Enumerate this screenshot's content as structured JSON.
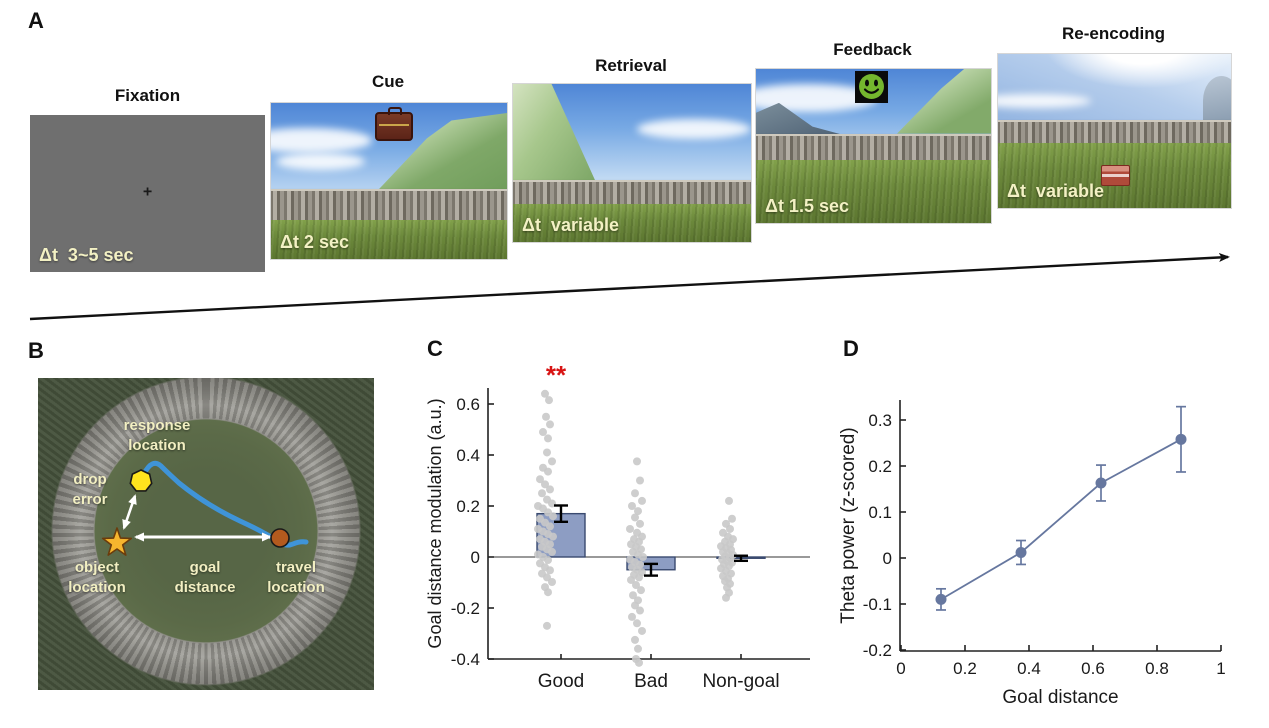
{
  "figure_labels": {
    "a": "A",
    "b": "B",
    "c": "C",
    "d": "D"
  },
  "panel_a": {
    "stages": [
      {
        "title": "Fixation",
        "duration": "Δt  3~5 sec"
      },
      {
        "title": "Cue",
        "duration": "Δt 2 sec"
      },
      {
        "title": "Retrieval",
        "duration": "Δt  variable"
      },
      {
        "title": "Feedback",
        "duration": "Δt 1.5 sec"
      },
      {
        "title": "Re-encoding",
        "duration": "Δt  variable"
      }
    ],
    "fixation_cross": "+"
  },
  "panel_b": {
    "labels": {
      "response_location": [
        "response",
        "location"
      ],
      "drop_error": [
        "drop",
        "error"
      ],
      "object_location": [
        "object",
        "location"
      ],
      "goal_distance": [
        "goal",
        "distance"
      ],
      "travel_location": [
        "travel",
        "location"
      ]
    },
    "colors": {
      "path": "#3f94d8",
      "response_marker": "#ffe41e",
      "object_marker": "#f6b52e",
      "travel_marker": "#b35a1e",
      "label_text": "#f2efc2"
    }
  },
  "chart_data": [
    {
      "id": "C",
      "type": "bar",
      "categories": [
        "Good",
        "Bad",
        "Non-goal"
      ],
      "bar_values": [
        0.17,
        -0.05,
        -0.005
      ],
      "bar_errors": [
        0.032,
        0.023,
        0.01
      ],
      "significance": {
        "category": "Good",
        "marker": "**",
        "color": "#d81414"
      },
      "ylabel": "Goal distance modulation (a.u.)",
      "yticks": [
        -0.4,
        -0.2,
        0,
        0.2,
        0.4,
        0.6
      ],
      "ylim": [
        -0.42,
        0.7
      ],
      "grid": false,
      "bar_color": "#8d9dc3",
      "bar_edge": "#3a4a6f",
      "point_color": "#c9c9c9",
      "points": {
        "Good": [
          [
            -16,
            0.64
          ],
          [
            -12,
            0.615
          ],
          [
            -15,
            0.55
          ],
          [
            -11,
            0.52
          ],
          [
            -18,
            0.49
          ],
          [
            -13,
            0.465
          ],
          [
            -14,
            0.41
          ],
          [
            -9,
            0.375
          ],
          [
            -18,
            0.35
          ],
          [
            -13,
            0.335
          ],
          [
            -21,
            0.305
          ],
          [
            -16,
            0.285
          ],
          [
            -11,
            0.265
          ],
          [
            -19,
            0.25
          ],
          [
            -14,
            0.225
          ],
          [
            -9,
            0.21
          ],
          [
            -23,
            0.2
          ],
          [
            -18,
            0.19
          ],
          [
            -13,
            0.175
          ],
          [
            -8,
            0.16
          ],
          [
            -21,
            0.15
          ],
          [
            -16,
            0.135
          ],
          [
            -11,
            0.12
          ],
          [
            -23,
            0.11
          ],
          [
            -18,
            0.1
          ],
          [
            -13,
            0.09
          ],
          [
            -8,
            0.08
          ],
          [
            -21,
            0.07
          ],
          [
            -16,
            0.06
          ],
          [
            -11,
            0.05
          ],
          [
            -19,
            0.04
          ],
          [
            -14,
            0.03
          ],
          [
            -9,
            0.02
          ],
          [
            -23,
            0.01
          ],
          [
            -18,
            0.0
          ],
          [
            -13,
            -0.012
          ],
          [
            -21,
            -0.025
          ],
          [
            -16,
            -0.04
          ],
          [
            -11,
            -0.052
          ],
          [
            -19,
            -0.065
          ],
          [
            -14,
            -0.08
          ],
          [
            -9,
            -0.098
          ],
          [
            -16,
            -0.118
          ],
          [
            -13,
            -0.138
          ],
          [
            -14,
            -0.27
          ]
        ],
        "Bad": [
          [
            -14,
            0.375
          ],
          [
            -11,
            0.3
          ],
          [
            -16,
            0.25
          ],
          [
            -9,
            0.22
          ],
          [
            -19,
            0.2
          ],
          [
            -13,
            0.18
          ],
          [
            -16,
            0.155
          ],
          [
            -11,
            0.13
          ],
          [
            -21,
            0.11
          ],
          [
            -14,
            0.095
          ],
          [
            -9,
            0.08
          ],
          [
            -17,
            0.07
          ],
          [
            -12,
            0.06
          ],
          [
            -20,
            0.05
          ],
          [
            -15,
            0.04
          ],
          [
            -10,
            0.03
          ],
          [
            -18,
            0.02
          ],
          [
            -13,
            0.01
          ],
          [
            -8,
            0.0
          ],
          [
            -21,
            -0.01
          ],
          [
            -16,
            -0.02
          ],
          [
            -11,
            -0.03
          ],
          [
            -19,
            -0.04
          ],
          [
            -14,
            -0.05
          ],
          [
            -9,
            -0.06
          ],
          [
            -17,
            -0.07
          ],
          [
            -12,
            -0.08
          ],
          [
            -20,
            -0.09
          ],
          [
            -15,
            -0.11
          ],
          [
            -10,
            -0.13
          ],
          [
            -18,
            -0.15
          ],
          [
            -13,
            -0.17
          ],
          [
            -16,
            -0.19
          ],
          [
            -11,
            -0.21
          ],
          [
            -19,
            -0.235
          ],
          [
            -14,
            -0.26
          ],
          [
            -9,
            -0.29
          ],
          [
            -16,
            -0.325
          ],
          [
            -13,
            -0.36
          ],
          [
            -15,
            -0.4
          ],
          [
            -12,
            -0.415
          ]
        ],
        "Non-goal": [
          [
            -12,
            0.22
          ],
          [
            -9,
            0.15
          ],
          [
            -15,
            0.13
          ],
          [
            -11,
            0.11
          ],
          [
            -18,
            0.095
          ],
          [
            -13,
            0.08
          ],
          [
            -8,
            0.07
          ],
          [
            -16,
            0.06
          ],
          [
            -11,
            0.05
          ],
          [
            -20,
            0.042
          ],
          [
            -15,
            0.035
          ],
          [
            -10,
            0.028
          ],
          [
            -18,
            0.02
          ],
          [
            -13,
            0.014
          ],
          [
            -8,
            0.008
          ],
          [
            -16,
            0.002
          ],
          [
            -11,
            -0.004
          ],
          [
            -19,
            -0.01
          ],
          [
            -14,
            -0.016
          ],
          [
            -9,
            -0.022
          ],
          [
            -17,
            -0.028
          ],
          [
            -12,
            -0.035
          ],
          [
            -20,
            -0.045
          ],
          [
            -15,
            -0.055
          ],
          [
            -10,
            -0.065
          ],
          [
            -18,
            -0.075
          ],
          [
            -13,
            -0.085
          ],
          [
            -16,
            -0.095
          ],
          [
            -11,
            -0.105
          ],
          [
            -14,
            -0.12
          ],
          [
            -12,
            -0.14
          ],
          [
            -15,
            -0.16
          ]
        ]
      }
    },
    {
      "id": "D",
      "type": "line",
      "x": [
        0.125,
        0.375,
        0.625,
        0.875
      ],
      "y": [
        -0.09,
        0.012,
        0.163,
        0.258
      ],
      "yerr": [
        0.023,
        0.026,
        0.039,
        0.071
      ],
      "xlabel": "Goal distance",
      "ylabel": "Theta power (z-scored)",
      "xticks": [
        0,
        0.2,
        0.4,
        0.6,
        0.8,
        1
      ],
      "yticks": [
        -0.2,
        -0.1,
        0,
        0.1,
        0.2,
        0.3
      ],
      "xlim": [
        0,
        1
      ],
      "ylim": [
        -0.2,
        0.35
      ],
      "grid": false,
      "color": "#66779f"
    }
  ]
}
